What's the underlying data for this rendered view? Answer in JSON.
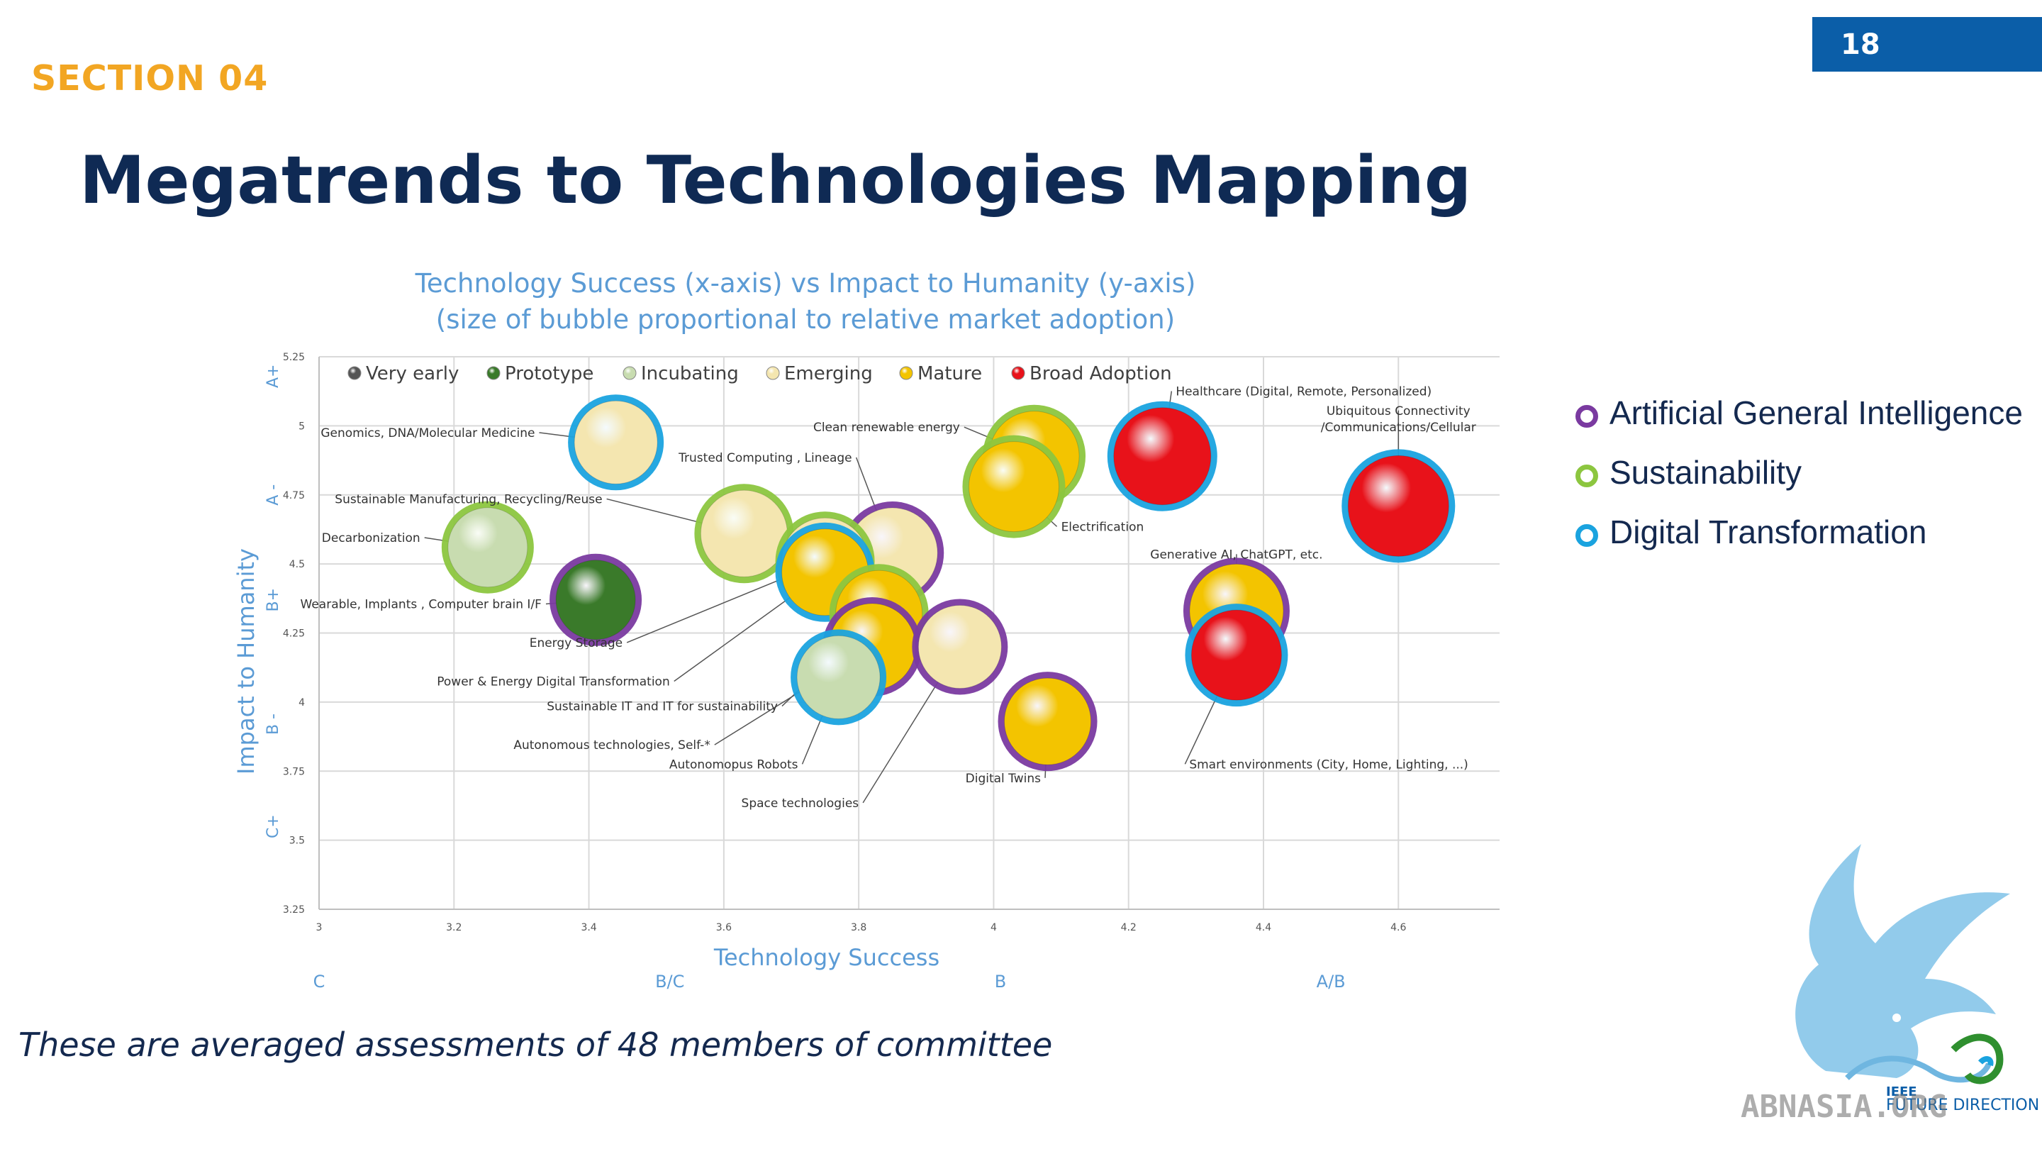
{
  "page": {
    "number": "18",
    "section": "SECTION 04",
    "title": "Megatrends to Technologies Mapping",
    "footnote": "These are averaged assessments of 48 members of committee"
  },
  "megatrend_legend": [
    {
      "label": "Artificial General Intelligence",
      "color": "#7a3aa0"
    },
    {
      "label": "Sustainability",
      "color": "#8cc63f"
    },
    {
      "label": "Digital Transformation",
      "color": "#1aa3df"
    }
  ],
  "logo": {
    "text_top": "IEEE",
    "text_bottom": "FUTURE DIRECTIONS",
    "watermark": "ABNASIA.ORG"
  },
  "chart_data": {
    "type": "scatter",
    "title": "Technology Success (x-axis) vs Impact to Humanity (y-axis)",
    "subtitle": "(size of bubble proportional to relative market adoption)",
    "xlabel": "Technology Success",
    "ylabel": "Impact to Humanity",
    "xlim": [
      3,
      4.75
    ],
    "ylim": [
      3.25,
      5.25
    ],
    "xticks": [
      "3",
      "3.2",
      "3.4",
      "3.6",
      "3.8",
      "4",
      "4.2",
      "4.4",
      "4.6"
    ],
    "yticks": [
      "3.25",
      "3.5",
      "3.75",
      "4",
      "4.25",
      "4.5",
      "4.75",
      "5",
      "5.25"
    ],
    "x_grades": [
      {
        "label": "C",
        "x": 3.0
      },
      {
        "label": "B/C",
        "x": 3.52
      },
      {
        "label": "B",
        "x": 4.01
      },
      {
        "label": "A/B",
        "x": 4.5
      }
    ],
    "y_grades": [
      {
        "label": "A+",
        "y": 5.18
      },
      {
        "label": "A -",
        "y": 4.75
      },
      {
        "label": "B+",
        "y": 4.37
      },
      {
        "label": "B -",
        "y": 3.92
      },
      {
        "label": "C+",
        "y": 3.55
      }
    ],
    "grid": true,
    "stage_legend": [
      {
        "label": "Very early",
        "color": "#555555"
      },
      {
        "label": "Prototype",
        "color": "#3a7a2a"
      },
      {
        "label": "Incubating",
        "color": "#c8dcb0"
      },
      {
        "label": "Emerging",
        "color": "#f4e6b0"
      },
      {
        "label": "Mature",
        "color": "#f3c400"
      },
      {
        "label": "Broad Adoption",
        "color": "#e8121a"
      }
    ],
    "points": [
      {
        "label": "Genomics, DNA/Molecular Medicine",
        "x": 3.44,
        "y": 4.94,
        "stage": "Emerging",
        "ring": "Digital Transformation",
        "size": 0.45,
        "label_x": 3.32,
        "label_y": 4.96,
        "anchor": "end"
      },
      {
        "label": "Clean renewable energy",
        "x": 4.06,
        "y": 4.89,
        "stage": "Mature",
        "ring": "Sustainability",
        "size": 0.55,
        "label_x": 3.95,
        "label_y": 4.98,
        "anchor": "end"
      },
      {
        "label": "Trusted Computing , Lineage",
        "x": 3.85,
        "y": 4.54,
        "stage": "Emerging",
        "ring": "Artificial General Intelligence",
        "size": 0.55,
        "label_x": 3.79,
        "label_y": 4.87,
        "anchor": "end"
      },
      {
        "label": "Healthcare (Digital, Remote, Personalized)",
        "x": 4.25,
        "y": 4.89,
        "stage": "Broad Adoption",
        "ring": "Digital Transformation",
        "size": 0.65,
        "label_x": 4.27,
        "label_y": 5.11,
        "anchor": "start"
      },
      {
        "label": "Ubiquitous Connectivity",
        "x": 4.6,
        "y": 4.71,
        "stage": "Broad Adoption",
        "ring": "Digital Transformation",
        "size": 0.7,
        "label_x": 4.6,
        "label_y": 5.04,
        "anchor": "middle"
      },
      {
        "label": "/Communications/Cellular",
        "x": 4.6,
        "y": 4.71,
        "stage": "Broad Adoption",
        "ring": "Digital Transformation",
        "size": 0,
        "label_x": 4.6,
        "label_y": 4.98,
        "anchor": "middle"
      },
      {
        "label": "Electrification",
        "x": 4.03,
        "y": 4.78,
        "stage": "Mature",
        "ring": "Sustainability",
        "size": 0.55,
        "label_x": 4.1,
        "label_y": 4.62,
        "anchor": "start"
      },
      {
        "label": "Sustainable Manufacturing, Recycling/Reuse",
        "x": 3.63,
        "y": 4.61,
        "stage": "Emerging",
        "ring": "Sustainability",
        "size": 0.5,
        "label_x": 3.42,
        "label_y": 4.72,
        "anchor": "end"
      },
      {
        "label": "Decarbonization",
        "x": 3.25,
        "y": 4.56,
        "stage": "Incubating",
        "ring": "Sustainability",
        "size": 0.4,
        "label_x": 3.15,
        "label_y": 4.58,
        "anchor": "end"
      },
      {
        "label": "Generative AI, ChatGPT, etc.",
        "x": 4.36,
        "y": 4.33,
        "stage": "Mature",
        "ring": "Artificial General Intelligence",
        "size": 0.6,
        "label_x": 4.36,
        "label_y": 4.52,
        "anchor": "middle"
      },
      {
        "label": "Wearable, Implants , Computer brain I/F",
        "x": 3.41,
        "y": 4.37,
        "stage": "Prototype",
        "ring": "Artificial General Intelligence",
        "size": 0.4,
        "label_x": 3.33,
        "label_y": 4.34,
        "anchor": "end"
      },
      {
        "label": "Energy Storage",
        "x": 3.75,
        "y": 4.51,
        "stage": "Emerging",
        "ring": "Sustainability",
        "size": 0.5,
        "label_x": 3.45,
        "label_y": 4.2,
        "anchor": "end"
      },
      {
        "label": "Power & Energy Digital Transformation",
        "x": 3.75,
        "y": 4.47,
        "stage": "Mature",
        "ring": "Digital Transformation",
        "size": 0.5,
        "label_x": 3.52,
        "label_y": 4.06,
        "anchor": "end"
      },
      {
        "label": "Sustainable IT and IT for sustainability",
        "x": 3.83,
        "y": 4.32,
        "stage": "Mature",
        "ring": "Sustainability",
        "size": 0.5,
        "label_x": 3.68,
        "label_y": 3.97,
        "anchor": "end"
      },
      {
        "label": "Autonomous technologies, Self-*",
        "x": 3.82,
        "y": 4.2,
        "stage": "Mature",
        "ring": "Artificial General Intelligence",
        "size": 0.5,
        "label_x": 3.58,
        "label_y": 3.83,
        "anchor": "end"
      },
      {
        "label": "Autonomopus Robots",
        "x": 3.77,
        "y": 4.09,
        "stage": "Incubating",
        "ring": "Digital Transformation",
        "size": 0.45,
        "label_x": 3.71,
        "label_y": 3.76,
        "anchor": "end"
      },
      {
        "label": "Space technologies",
        "x": 3.95,
        "y": 4.2,
        "stage": "Emerging",
        "ring": "Artificial General Intelligence",
        "size": 0.45,
        "label_x": 3.8,
        "label_y": 3.62,
        "anchor": "end"
      },
      {
        "label": "Digital Twins",
        "x": 4.08,
        "y": 3.93,
        "stage": "Mature",
        "ring": "Artificial General Intelligence",
        "size": 0.5,
        "label_x": 4.07,
        "label_y": 3.71,
        "anchor": "end"
      },
      {
        "label": "Smart environments (City, Home, Lighting, ...)",
        "x": 4.36,
        "y": 4.17,
        "stage": "Broad Adoption",
        "ring": "Digital Transformation",
        "size": 0.55,
        "label_x": 4.29,
        "label_y": 3.76,
        "anchor": "start"
      }
    ]
  }
}
